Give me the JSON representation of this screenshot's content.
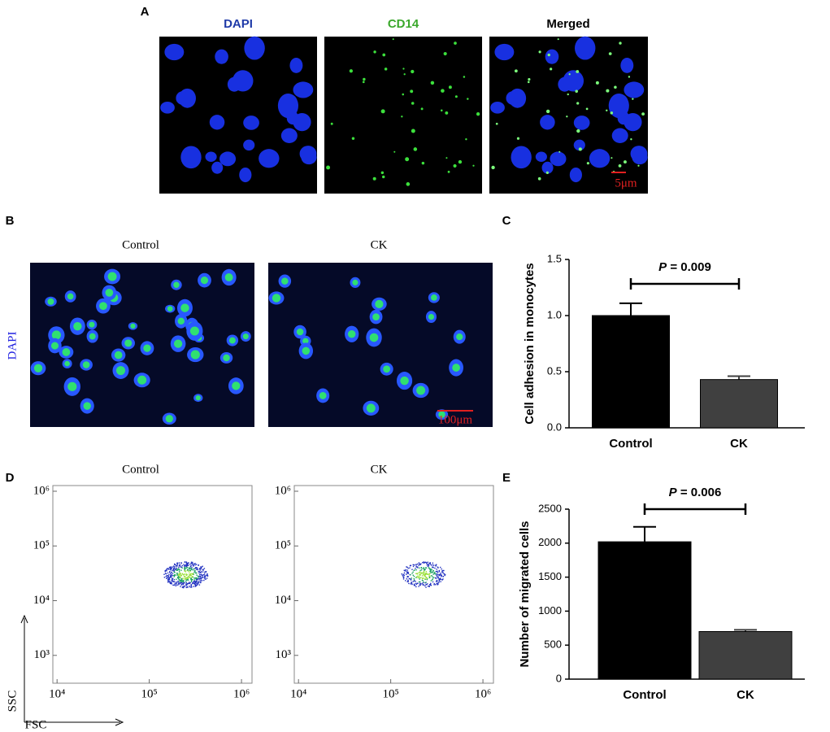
{
  "panels": {
    "A": {
      "label": "A",
      "titles": [
        "DAPI",
        "CD14",
        "Merged"
      ],
      "scale_bar": "5μm"
    },
    "B": {
      "label": "B",
      "columns": [
        "Control",
        "CK"
      ],
      "row_label": "DAPI",
      "scale_bar": "100μm"
    },
    "C": {
      "label": "C"
    },
    "D": {
      "label": "D",
      "columns": [
        "Control",
        "CK"
      ],
      "x_label": "FSC",
      "y_label": "SSC",
      "log_scale": true,
      "xlim": [
        9000,
        1300000
      ],
      "xticks": [
        {
          "value": 10000,
          "label": "10⁴"
        },
        {
          "value": 100000,
          "label": "10⁵"
        },
        {
          "value": 1000000,
          "label": "10⁶"
        }
      ],
      "ylim": [
        310,
        1270000
      ],
      "yticks": [
        {
          "value": 1000,
          "label": "10³"
        },
        {
          "value": 10000,
          "label": "10⁴"
        },
        {
          "value": 100000,
          "label": "10⁵"
        },
        {
          "value": 1000000,
          "label": "10⁶"
        }
      ]
    },
    "E": {
      "label": "E"
    }
  },
  "chart_data": [
    {
      "type": "bar",
      "y_label": "Cell adhesion in monocytes",
      "categories": [
        "Control",
        "CK"
      ],
      "values": [
        1.0,
        0.43
      ],
      "errors": [
        0.11,
        0.03
      ],
      "colors": [
        "#000000",
        "#404040"
      ],
      "ylim": [
        0,
        1.5
      ],
      "yticks": [
        {
          "value": 0,
          "label": "0.0"
        },
        {
          "value": 0.5,
          "label": "0.5"
        },
        {
          "value": 1,
          "label": "1.0"
        },
        {
          "value": 1.5,
          "label": "1.5"
        }
      ],
      "annotation": {
        "symbol": "P",
        "text": "= 0.009"
      }
    },
    {
      "type": "bar",
      "y_label": "Number of migrated cells",
      "categories": [
        "Control",
        "CK"
      ],
      "values": [
        2020,
        700
      ],
      "errors": [
        220,
        25
      ],
      "colors": [
        "#000000",
        "#404040"
      ],
      "ylim": [
        0,
        2500
      ],
      "yticks": [
        0,
        500,
        1000,
        1500,
        2000,
        2500
      ],
      "annotation": {
        "symbol": "P",
        "text": "= 0.006"
      }
    }
  ]
}
